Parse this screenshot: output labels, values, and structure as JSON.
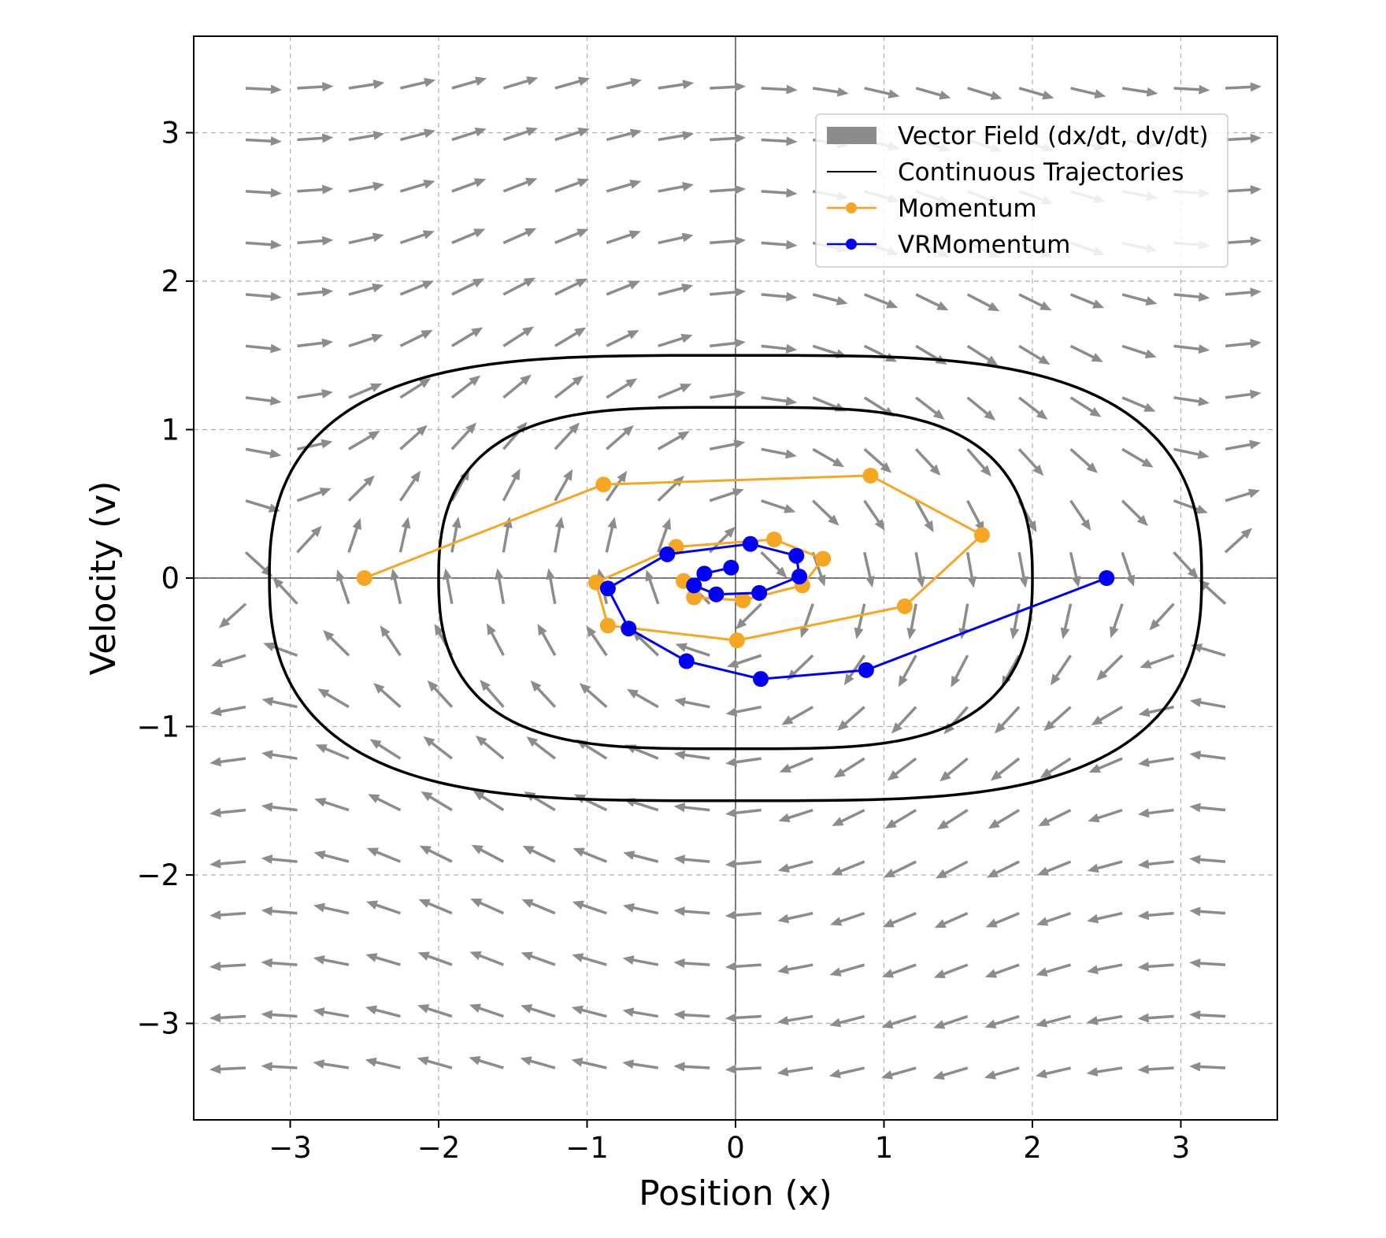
{
  "chart_data": {
    "type": "line",
    "title": "",
    "xlabel": "Position (x)",
    "ylabel": "Velocity (v)",
    "xlim": [
      -3.65,
      3.65
    ],
    "ylim": [
      -3.65,
      3.65
    ],
    "xticks": [
      -3,
      -2,
      -1,
      0,
      1,
      2,
      3
    ],
    "yticks": [
      -3,
      -2,
      -1,
      0,
      1,
      2,
      3
    ],
    "xtick_labels": [
      "−3",
      "−2",
      "−1",
      "0",
      "1",
      "2",
      "3"
    ],
    "ytick_labels": [
      "−3",
      "−2",
      "−1",
      "0",
      "1",
      "2",
      "3"
    ],
    "grid": true,
    "legend_position": "top-right",
    "vector_field": {
      "name": "Vector Field (dx/dt, dv/dt)",
      "color": "#8c8c8c",
      "x_range": [
        -3.3,
        3.3
      ],
      "v_range": [
        -3.3,
        3.3
      ],
      "count": 20,
      "dx_dt": "v",
      "dv_dt": "-sin(x)"
    },
    "continuous_trajectories": {
      "name": "Continuous Trajectories",
      "color": "#000000",
      "curves": [
        {
          "x0": 2.0,
          "v0": 0,
          "x_extent": 2.0,
          "v_extent": 1.15
        },
        {
          "x0": 3.14,
          "v0": 0,
          "x_extent": 3.14,
          "v_extent": 1.5
        }
      ]
    },
    "series": [
      {
        "name": "Momentum",
        "color": "#f5a623",
        "x": [
          -2.5,
          -0.89,
          0.91,
          1.66,
          1.14,
          0.01,
          -0.86,
          -0.94,
          -0.4,
          0.26,
          0.59,
          0.45,
          0.05,
          -0.28,
          -0.35
        ],
        "y": [
          0.0,
          0.63,
          0.69,
          0.29,
          -0.19,
          -0.42,
          -0.32,
          -0.03,
          0.21,
          0.26,
          0.13,
          -0.05,
          -0.15,
          -0.13,
          -0.02
        ]
      },
      {
        "name": "VRMomentum",
        "color": "#0000f5",
        "x": [
          2.5,
          0.88,
          0.17,
          -0.33,
          -0.72,
          -0.86,
          -0.46,
          0.1,
          0.41,
          0.43,
          0.16,
          -0.13,
          -0.28,
          -0.21,
          -0.03
        ],
        "y": [
          0.0,
          -0.62,
          -0.68,
          -0.56,
          -0.34,
          -0.07,
          0.16,
          0.23,
          0.15,
          0.01,
          -0.1,
          -0.11,
          -0.05,
          0.03,
          0.07
        ]
      }
    ]
  }
}
